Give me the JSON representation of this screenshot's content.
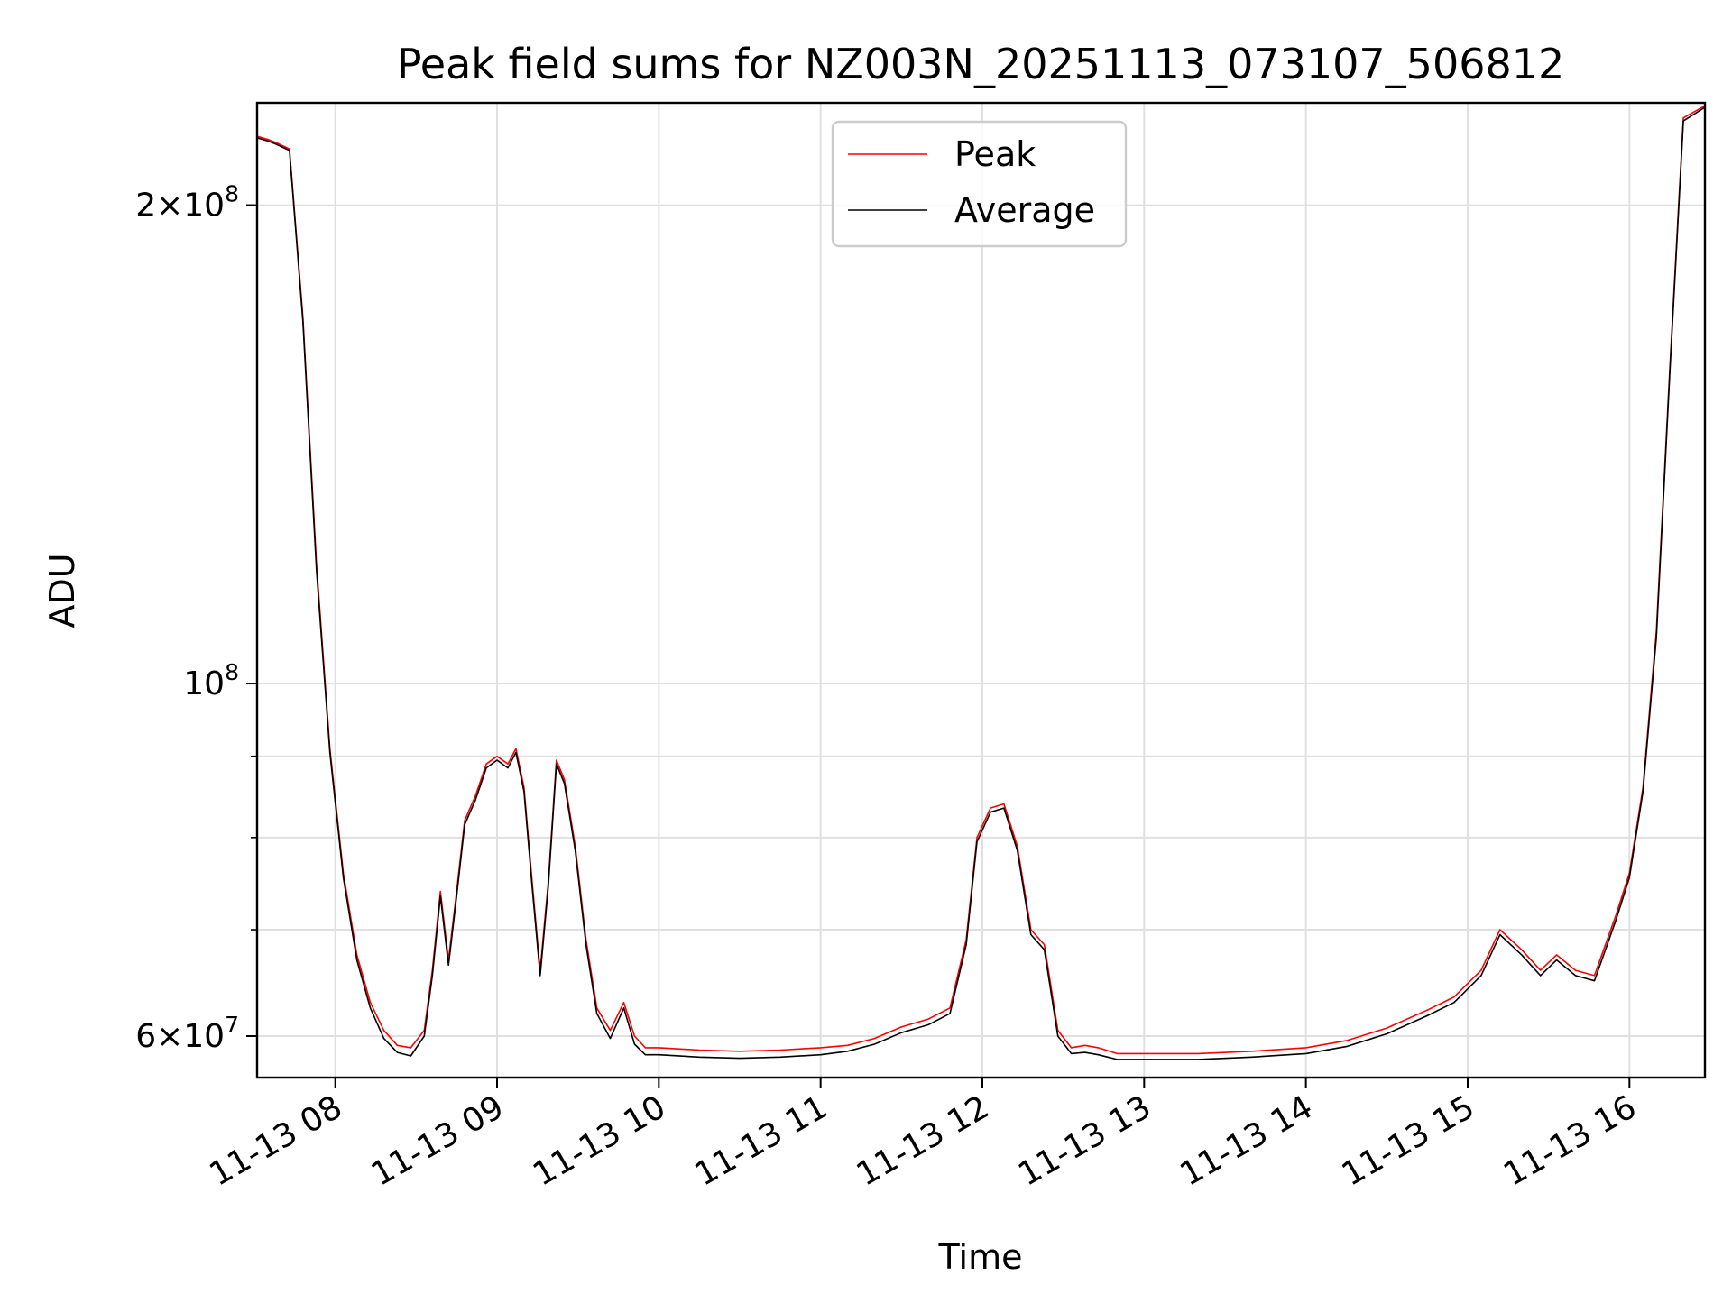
{
  "chart_data": {
    "type": "line",
    "title": "Peak field sums for NZ003N_20251113_073107_506812",
    "xlabel": "Time",
    "ylabel": "ADU",
    "yscale": "log",
    "xlim": [
      "2025-11-13 07:31",
      "2025-11-13 16:28"
    ],
    "ylim": [
      56500000,
      232000000
    ],
    "grid": true,
    "legend_placement": "upper center",
    "x_ticks": [
      {
        "value": "2025-11-13 08:00",
        "label": "11-13 08"
      },
      {
        "value": "2025-11-13 09:00",
        "label": "11-13 09"
      },
      {
        "value": "2025-11-13 10:00",
        "label": "11-13 10"
      },
      {
        "value": "2025-11-13 11:00",
        "label": "11-13 11"
      },
      {
        "value": "2025-11-13 12:00",
        "label": "11-13 12"
      },
      {
        "value": "2025-11-13 13:00",
        "label": "11-13 13"
      },
      {
        "value": "2025-11-13 14:00",
        "label": "11-13 14"
      },
      {
        "value": "2025-11-13 15:00",
        "label": "11-13 15"
      },
      {
        "value": "2025-11-13 16:00",
        "label": "11-13 16"
      }
    ],
    "y_ticks": [
      {
        "value": 60000000,
        "mantissa": "6",
        "exponent": "7"
      },
      {
        "value": 100000000,
        "mantissa": "",
        "exponent": "8"
      },
      {
        "value": 200000000,
        "mantissa": "2",
        "exponent": "8"
      }
    ],
    "y_minor_ticks": [
      70000000,
      80000000,
      90000000
    ],
    "series": [
      {
        "name": "Peak",
        "color": "#ff0000",
        "x": [
          "2025-11-13 07:31",
          "2025-11-13 07:35",
          "2025-11-13 07:38",
          "2025-11-13 07:43",
          "2025-11-13 07:48",
          "2025-11-13 07:53",
          "2025-11-13 07:58",
          "2025-11-13 08:03",
          "2025-11-13 08:08",
          "2025-11-13 08:13",
          "2025-11-13 08:18",
          "2025-11-13 08:23",
          "2025-11-13 08:28",
          "2025-11-13 08:33",
          "2025-11-13 08:36",
          "2025-11-13 08:39",
          "2025-11-13 08:42",
          "2025-11-13 08:45",
          "2025-11-13 08:48",
          "2025-11-13 08:52",
          "2025-11-13 08:56",
          "2025-11-13 09:00",
          "2025-11-13 09:04",
          "2025-11-13 09:07",
          "2025-11-13 09:10",
          "2025-11-13 09:13",
          "2025-11-13 09:16",
          "2025-11-13 09:19",
          "2025-11-13 09:22",
          "2025-11-13 09:25",
          "2025-11-13 09:29",
          "2025-11-13 09:33",
          "2025-11-13 09:37",
          "2025-11-13 09:42",
          "2025-11-13 09:47",
          "2025-11-13 09:51",
          "2025-11-13 09:55",
          "2025-11-13 10:00",
          "2025-11-13 10:15",
          "2025-11-13 10:30",
          "2025-11-13 10:45",
          "2025-11-13 11:00",
          "2025-11-13 11:10",
          "2025-11-13 11:20",
          "2025-11-13 11:30",
          "2025-11-13 11:40",
          "2025-11-13 11:48",
          "2025-11-13 11:54",
          "2025-11-13 11:58",
          "2025-11-13 12:03",
          "2025-11-13 12:08",
          "2025-11-13 12:13",
          "2025-11-13 12:18",
          "2025-11-13 12:23",
          "2025-11-13 12:28",
          "2025-11-13 12:33",
          "2025-11-13 12:38",
          "2025-11-13 12:43",
          "2025-11-13 12:50",
          "2025-11-13 13:00",
          "2025-11-13 13:20",
          "2025-11-13 13:40",
          "2025-11-13 14:00",
          "2025-11-13 14:15",
          "2025-11-13 14:30",
          "2025-11-13 14:45",
          "2025-11-13 14:55",
          "2025-11-13 15:05",
          "2025-11-13 15:12",
          "2025-11-13 15:20",
          "2025-11-13 15:27",
          "2025-11-13 15:33",
          "2025-11-13 15:40",
          "2025-11-13 15:47",
          "2025-11-13 15:55",
          "2025-11-13 16:00",
          "2025-11-13 16:05",
          "2025-11-13 16:10",
          "2025-11-13 16:15",
          "2025-11-13 16:20",
          "2025-11-13 16:28"
        ],
        "values": [
          221000000,
          220000000,
          219000000,
          217000000,
          170000000,
          119000000,
          91000000,
          76000000,
          67500000,
          63000000,
          60500000,
          59200000,
          59000000,
          60500000,
          66000000,
          74000000,
          67000000,
          74000000,
          82000000,
          85000000,
          89000000,
          90000000,
          89000000,
          91000000,
          86000000,
          75000000,
          66000000,
          75000000,
          89500000,
          87000000,
          79000000,
          69000000,
          62500000,
          60500000,
          63000000,
          60000000,
          59000000,
          59000000,
          58800000,
          58700000,
          58800000,
          59000000,
          59200000,
          59800000,
          60800000,
          61500000,
          62500000,
          69000000,
          80000000,
          83500000,
          84000000,
          79000000,
          70000000,
          68500000,
          60500000,
          59000000,
          59200000,
          59000000,
          58500000,
          58500000,
          58500000,
          58700000,
          59000000,
          59600000,
          60700000,
          62300000,
          63500000,
          66000000,
          70000000,
          68000000,
          66000000,
          67500000,
          66000000,
          65500000,
          71500000,
          76000000,
          86000000,
          108000000,
          158000000,
          227000000,
          231000000
        ]
      },
      {
        "name": "Average",
        "color": "#000000",
        "x": [
          "2025-11-13 07:31",
          "2025-11-13 07:35",
          "2025-11-13 07:38",
          "2025-11-13 07:43",
          "2025-11-13 07:48",
          "2025-11-13 07:53",
          "2025-11-13 07:58",
          "2025-11-13 08:03",
          "2025-11-13 08:08",
          "2025-11-13 08:13",
          "2025-11-13 08:18",
          "2025-11-13 08:23",
          "2025-11-13 08:28",
          "2025-11-13 08:33",
          "2025-11-13 08:36",
          "2025-11-13 08:39",
          "2025-11-13 08:42",
          "2025-11-13 08:45",
          "2025-11-13 08:48",
          "2025-11-13 08:52",
          "2025-11-13 08:56",
          "2025-11-13 09:00",
          "2025-11-13 09:04",
          "2025-11-13 09:07",
          "2025-11-13 09:10",
          "2025-11-13 09:13",
          "2025-11-13 09:16",
          "2025-11-13 09:19",
          "2025-11-13 09:22",
          "2025-11-13 09:25",
          "2025-11-13 09:29",
          "2025-11-13 09:33",
          "2025-11-13 09:37",
          "2025-11-13 09:42",
          "2025-11-13 09:47",
          "2025-11-13 09:51",
          "2025-11-13 09:55",
          "2025-11-13 10:00",
          "2025-11-13 10:15",
          "2025-11-13 10:30",
          "2025-11-13 10:45",
          "2025-11-13 11:00",
          "2025-11-13 11:10",
          "2025-11-13 11:20",
          "2025-11-13 11:30",
          "2025-11-13 11:40",
          "2025-11-13 11:48",
          "2025-11-13 11:54",
          "2025-11-13 11:58",
          "2025-11-13 12:03",
          "2025-11-13 12:08",
          "2025-11-13 12:13",
          "2025-11-13 12:18",
          "2025-11-13 12:23",
          "2025-11-13 12:28",
          "2025-11-13 12:33",
          "2025-11-13 12:38",
          "2025-11-13 12:43",
          "2025-11-13 12:50",
          "2025-11-13 13:00",
          "2025-11-13 13:20",
          "2025-11-13 13:40",
          "2025-11-13 14:00",
          "2025-11-13 14:15",
          "2025-11-13 14:30",
          "2025-11-13 14:45",
          "2025-11-13 14:55",
          "2025-11-13 15:05",
          "2025-11-13 15:12",
          "2025-11-13 15:20",
          "2025-11-13 15:27",
          "2025-11-13 15:33",
          "2025-11-13 15:40",
          "2025-11-13 15:47",
          "2025-11-13 15:55",
          "2025-11-13 16:00",
          "2025-11-13 16:05",
          "2025-11-13 16:10",
          "2025-11-13 16:15",
          "2025-11-13 16:20",
          "2025-11-13 16:28"
        ],
        "values": [
          220500000,
          219500000,
          218500000,
          216500000,
          169000000,
          118000000,
          90500000,
          75500000,
          67000000,
          62500000,
          59800000,
          58600000,
          58300000,
          60000000,
          65500000,
          73500000,
          66500000,
          73500000,
          81500000,
          84500000,
          88500000,
          89500000,
          88500000,
          90500000,
          85500000,
          74500000,
          65500000,
          74500000,
          89000000,
          86500000,
          78500000,
          68500000,
          62000000,
          59800000,
          62500000,
          59300000,
          58400000,
          58400000,
          58200000,
          58100000,
          58200000,
          58400000,
          58700000,
          59300000,
          60300000,
          61000000,
          62000000,
          68500000,
          79500000,
          83000000,
          83500000,
          78500000,
          69500000,
          68000000,
          60000000,
          58500000,
          58600000,
          58400000,
          58000000,
          58000000,
          58000000,
          58200000,
          58500000,
          59100000,
          60200000,
          61800000,
          63000000,
          65500000,
          69500000,
          67500000,
          65500000,
          67000000,
          65500000,
          65000000,
          71000000,
          75500000,
          85500000,
          107000000,
          157000000,
          226000000,
          230500000
        ]
      }
    ]
  }
}
